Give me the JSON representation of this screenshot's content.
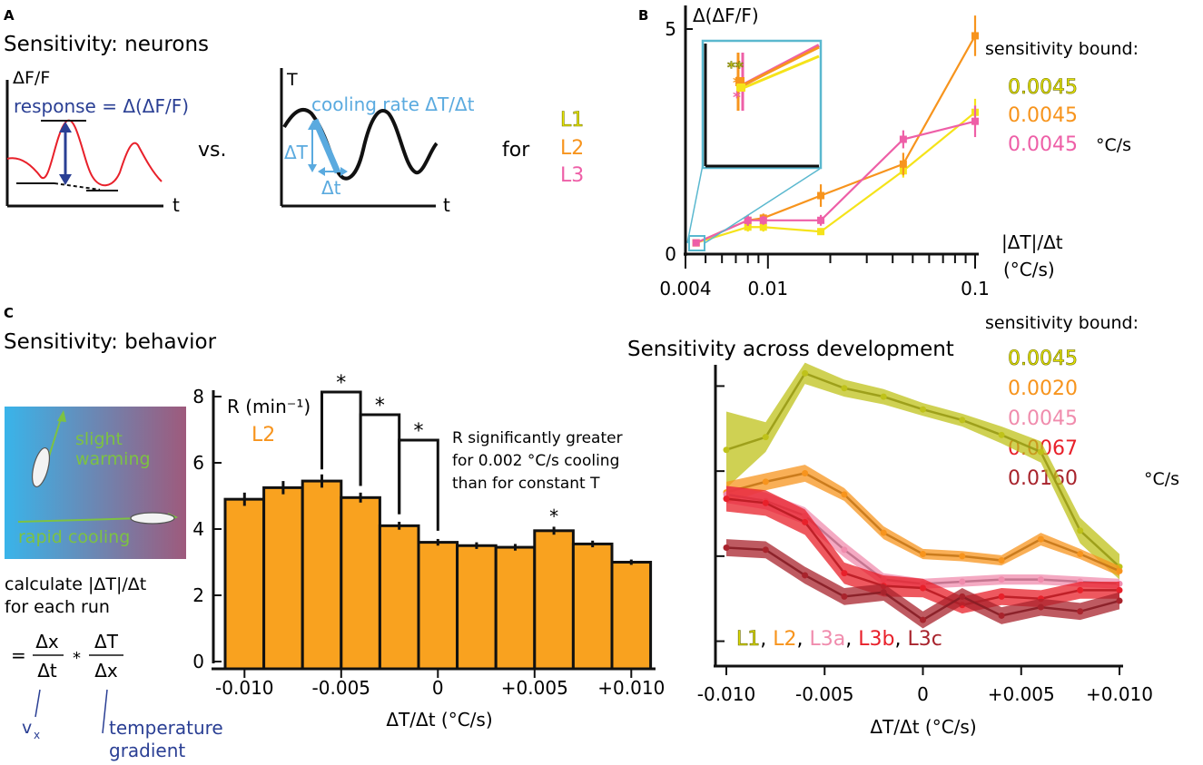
{
  "colors": {
    "L1": "#e6e600",
    "L1_text": "#c2c200",
    "L2": "#f7941d",
    "L3": "#ee5fa7",
    "L3a": "#f08cad",
    "L3b": "#e8202a",
    "L3c": "#a8232c",
    "blue": "#5aaadf",
    "dark_blue": "#2a3f94",
    "red_trace": "#e8202a",
    "green": "#7dc242"
  },
  "panel_a": {
    "label": "A",
    "title": "Sensitivity: neurons",
    "y_label": "ΔF/F",
    "response_label": "response = Δ(ΔF/F)",
    "x_label": "t",
    "vs": "vs.",
    "t_label": "T",
    "cooling_label": "cooling rate ΔT/Δt",
    "delta_T": "ΔT",
    "delta_t": "Δt",
    "for": "for",
    "stages": [
      "L1",
      "L2",
      "L3"
    ]
  },
  "panel_b": {
    "label": "B",
    "sensitivity_title": "sensitivity bound:",
    "bounds": [
      "0.0045",
      "0.0045",
      "0.0045"
    ],
    "unit": "°C/s",
    "inset_stars": [
      "**",
      "*",
      "*"
    ]
  },
  "panel_c": {
    "label": "C",
    "title": "Sensitivity: behavior",
    "illustration": {
      "warming": [
        "slight",
        "warming"
      ],
      "cooling": "rapid cooling"
    },
    "calc_lines": [
      "calculate |ΔT|/Δt",
      "for each run"
    ],
    "formula": {
      "eq": "=",
      "num1": "Δx",
      "den1": "Δt",
      "times": "*",
      "num2": "ΔT",
      "den2": "Δx"
    },
    "vx_label": "v",
    "vx_sub": "x",
    "gradient_label": [
      "temperature",
      "gradient"
    ],
    "stage_label": "L2",
    "note": [
      "R significantly greater",
      "for 0.002 °C/s cooling",
      "than for constant T"
    ],
    "star": "*"
  },
  "panel_dev": {
    "title": "Sensitivity across development",
    "sensitivity_title": "sensitivity bound:",
    "bounds": [
      "0.0045",
      "0.0020",
      "0.0045",
      "0.0067",
      "0.0160"
    ],
    "unit": "°C/s",
    "legend": [
      "L1",
      "L2",
      "L3a",
      "L3b",
      "L3c"
    ],
    "sep": ", "
  },
  "chart_data": [
    {
      "id": "B",
      "type": "line",
      "xscale": "log",
      "xlabel": [
        "|ΔT|/Δt",
        "(°C/s)"
      ],
      "ylabel": "Δ(ΔF/F)",
      "xlim": [
        0.004,
        0.1
      ],
      "ylim": [
        0,
        5
      ],
      "xticks": [
        0.004,
        0.01,
        0.1
      ],
      "xtick_labels": [
        "0.004",
        "0.01",
        "0.1"
      ],
      "yticks": [
        0,
        5
      ],
      "ytick_labels": [
        "0",
        "5"
      ],
      "x": [
        0.0045,
        0.008,
        0.0095,
        0.018,
        0.045,
        0.1
      ],
      "series": [
        {
          "name": "L1",
          "color": "#f5e31a",
          "values": [
            0.25,
            0.6,
            0.6,
            0.5,
            1.85,
            3.15
          ],
          "err": [
            0.05,
            0.1,
            0.1,
            0.06,
            0.15,
            0.3
          ]
        },
        {
          "name": "L2",
          "color": "#f7941d",
          "values": [
            0.25,
            0.75,
            0.8,
            1.3,
            2.0,
            4.85
          ],
          "err": [
            0.05,
            0.12,
            0.1,
            0.25,
            0.25,
            0.45
          ]
        },
        {
          "name": "L3",
          "color": "#ee5fa7",
          "values": [
            0.25,
            0.75,
            0.75,
            0.75,
            2.55,
            2.95
          ],
          "err": [
            0.05,
            0.12,
            0.1,
            0.12,
            0.2,
            0.35
          ]
        }
      ]
    },
    {
      "id": "C",
      "type": "bar",
      "ylabel": "R (min⁻¹)",
      "xlabel": "ΔT/Δt (°C/s)",
      "ylim": [
        0,
        8
      ],
      "yticks": [
        0,
        2,
        4,
        6,
        8
      ],
      "xticks": [
        -0.01,
        -0.005,
        0,
        0.005,
        0.01
      ],
      "xtick_labels": [
        "-0.010",
        "-0.005",
        "0",
        "+0.005",
        "+0.010"
      ],
      "x": [
        -0.01,
        -0.008,
        -0.006,
        -0.004,
        -0.002,
        0,
        0.002,
        0.004,
        0.006,
        0.008,
        0.01
      ],
      "values": [
        4.9,
        5.25,
        5.45,
        4.95,
        4.1,
        3.6,
        3.5,
        3.45,
        3.95,
        3.55,
        3.0
      ],
      "err": [
        0.2,
        0.2,
        0.2,
        0.15,
        0.12,
        0.1,
        0.1,
        0.1,
        0.12,
        0.1,
        0.08
      ],
      "color": "#f9a21f",
      "brackets": [
        {
          "from": -0.006,
          "to": -0.004,
          "label": "*"
        },
        {
          "from": -0.004,
          "to": -0.002,
          "label": "*"
        },
        {
          "from": -0.002,
          "to": 0,
          "label": "*"
        }
      ],
      "single_star_at": 0.006
    },
    {
      "id": "D",
      "type": "area",
      "xlabel": "ΔT/Δt (°C/s)",
      "xlim": [
        -0.01,
        0.01
      ],
      "xticks": [
        -0.01,
        -0.005,
        0,
        0.005,
        0.01
      ],
      "xtick_labels": [
        "-0.010",
        "-0.005",
        "0",
        "+0.005",
        "+0.010"
      ],
      "ylim": [
        1.5,
        8.5
      ],
      "yticks": [
        2,
        4,
        6,
        8
      ],
      "x": [
        -0.01,
        -0.008,
        -0.006,
        -0.004,
        -0.002,
        0,
        0.002,
        0.004,
        0.006,
        0.008,
        0.01
      ],
      "series": [
        {
          "name": "L1",
          "color": "#bfc21a",
          "values": [
            6.5,
            6.8,
            8.3,
            7.95,
            7.75,
            7.45,
            7.2,
            6.85,
            6.45,
            4.6,
            3.75
          ],
          "err": [
            0.9,
            0.35,
            0.25,
            0.2,
            0.18,
            0.15,
            0.15,
            0.2,
            0.25,
            0.3,
            0.3
          ]
        },
        {
          "name": "L2",
          "color": "#f7941d",
          "values": [
            5.5,
            5.75,
            5.95,
            5.45,
            4.55,
            4.05,
            4.0,
            3.9,
            4.4,
            4.05,
            3.65
          ],
          "err": [
            0.25,
            0.2,
            0.2,
            0.15,
            0.15,
            0.12,
            0.12,
            0.12,
            0.15,
            0.12,
            0.12
          ]
        },
        {
          "name": "L3a",
          "color": "#f08cad",
          "values": [
            5.45,
            5.3,
            4.95,
            4.15,
            3.45,
            3.35,
            3.4,
            3.45,
            3.45,
            3.4,
            3.35
          ],
          "err": [
            0.2,
            0.2,
            0.2,
            0.18,
            0.15,
            0.12,
            0.12,
            0.12,
            0.12,
            0.12,
            0.12
          ]
        },
        {
          "name": "L3b",
          "color": "#e8202a",
          "values": [
            5.35,
            5.25,
            4.8,
            3.6,
            3.3,
            3.25,
            2.85,
            3.05,
            3.0,
            3.2,
            3.2
          ],
          "err": [
            0.3,
            0.3,
            0.3,
            0.25,
            0.25,
            0.22,
            0.2,
            0.2,
            0.2,
            0.2,
            0.2
          ]
        },
        {
          "name": "L3c",
          "color": "#a8232c",
          "values": [
            4.2,
            4.15,
            3.55,
            3.05,
            3.15,
            2.5,
            3.05,
            2.6,
            2.8,
            2.7,
            2.95
          ],
          "err": [
            0.2,
            0.2,
            0.2,
            0.2,
            0.2,
            0.2,
            0.2,
            0.2,
            0.2,
            0.2,
            0.2
          ]
        }
      ]
    }
  ]
}
